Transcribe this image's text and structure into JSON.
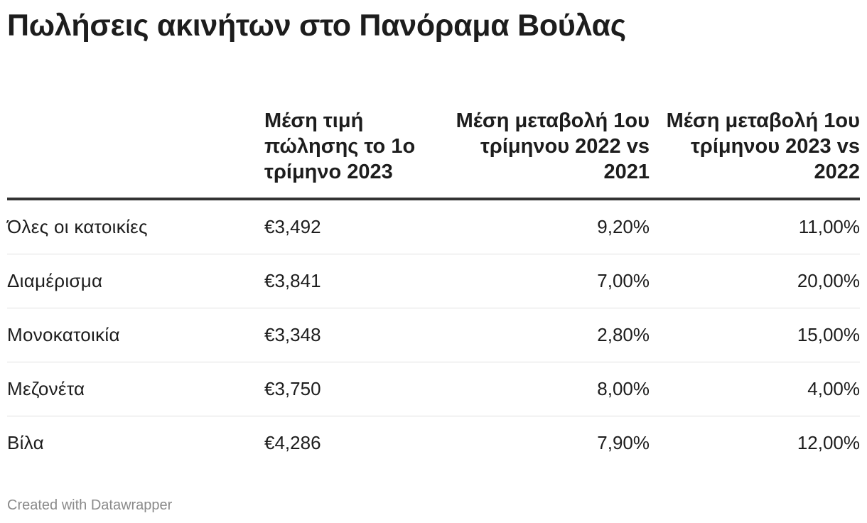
{
  "title": "Πωλήσεις ακινήτων στο Πανόραμα Βούλας",
  "chart_data": {
    "type": "table",
    "columns": [
      "",
      "Μέση τιμή πώλησης το 1ο τρίμηνο 2023",
      "Μέση μεταβολή 1ου τρίμηνου 2022 vs 2021",
      "Μέση μεταβολή 1ου τρίμηνου 2023 vs 2022"
    ],
    "rows": [
      {
        "category": "Όλες οι κατοικίες",
        "price": "€3,492",
        "change_2022_vs_2021": "9,20%",
        "change_2023_vs_2022": "11,00%"
      },
      {
        "category": "Διαμέρισμα",
        "price": "€3,841",
        "change_2022_vs_2021": "7,00%",
        "change_2023_vs_2022": "20,00%"
      },
      {
        "category": "Μονοκατοικία",
        "price": "€3,348",
        "change_2022_vs_2021": "2,80%",
        "change_2023_vs_2022": "15,00%"
      },
      {
        "category": "Μεζονέτα",
        "price": "€3,750",
        "change_2022_vs_2021": "8,00%",
        "change_2023_vs_2022": "4,00%"
      },
      {
        "category": "Βίλα",
        "price": "€4,286",
        "change_2022_vs_2021": "7,90%",
        "change_2023_vs_2022": "12,00%"
      }
    ]
  },
  "footer": "Created with Datawrapper",
  "colors": {
    "text": "#1d1d1d",
    "header_rule": "#333333",
    "row_rule": "#e0e0e0",
    "footer_text": "#8a8a8a"
  }
}
